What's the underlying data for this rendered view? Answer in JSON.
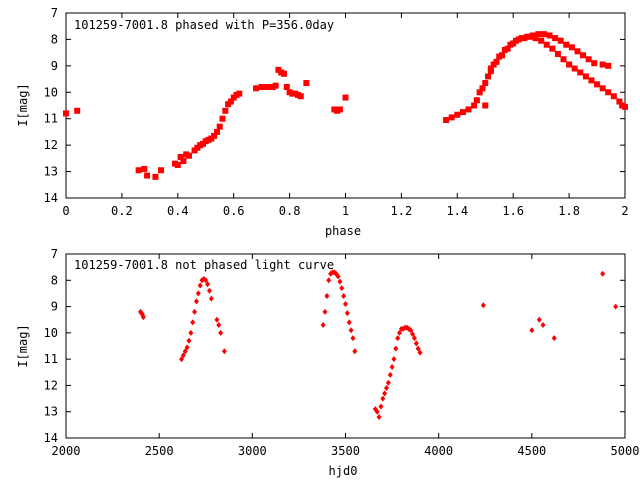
{
  "colors": {
    "marker": "#ff0000",
    "axis": "#000000",
    "background": "#ffffff"
  },
  "chart_data": [
    {
      "type": "scatter",
      "title": "101259-7001.8 phased with P=356.0day",
      "xlabel": "phase",
      "ylabel": "I[mag]",
      "xlim": [
        0,
        2
      ],
      "ylim": [
        14,
        7
      ],
      "y_inverted": true,
      "xticks": [
        "0",
        "0.2",
        "0.4",
        "0.6",
        "0.8",
        "1",
        "1.2",
        "1.4",
        "1.6",
        "1.8",
        "2"
      ],
      "yticks": [
        "7",
        "8",
        "9",
        "10",
        "11",
        "12",
        "13",
        "14"
      ],
      "grid": false,
      "series": [
        {
          "marker": "square",
          "x": [
            0.0,
            0.04,
            0.26,
            0.28,
            0.29,
            0.32,
            0.34,
            0.39,
            0.4,
            0.41,
            0.42,
            0.43,
            0.44,
            0.46,
            0.47,
            0.48,
            0.49,
            0.5,
            0.51,
            0.52,
            0.53,
            0.54,
            0.55,
            0.56,
            0.57,
            0.58,
            0.59,
            0.6,
            0.61,
            0.62,
            0.68,
            0.7,
            0.72,
            0.74,
            0.75,
            0.76,
            0.77,
            0.78,
            0.79,
            0.8,
            0.81,
            0.82,
            0.83,
            0.84,
            0.86,
            0.96,
            0.97,
            0.98,
            1.0,
            1.36,
            1.38,
            1.4,
            1.42,
            1.44,
            1.46,
            1.47,
            1.48,
            1.49,
            1.5,
            1.51,
            1.52,
            1.53,
            1.55,
            1.57,
            1.59,
            1.61,
            1.63,
            1.65,
            1.67,
            1.69,
            1.71,
            1.73,
            1.75,
            1.77,
            1.79,
            1.81,
            1.83,
            1.85,
            1.87,
            1.89,
            1.5,
            1.52,
            1.54,
            1.56,
            1.58,
            1.6,
            1.62,
            1.64,
            1.66,
            1.68,
            1.7,
            1.72,
            1.74,
            1.76,
            1.78,
            1.8,
            1.82,
            1.84,
            1.86,
            1.88,
            1.9,
            1.92,
            1.94,
            1.96,
            1.98,
            1.99,
            2.0,
            1.92,
            1.94
          ],
          "y": [
            10.8,
            10.7,
            12.95,
            12.9,
            13.15,
            13.2,
            12.95,
            12.7,
            12.75,
            12.45,
            12.6,
            12.35,
            12.4,
            12.2,
            12.1,
            12.0,
            11.95,
            11.85,
            11.8,
            11.75,
            11.65,
            11.5,
            11.3,
            11.0,
            10.7,
            10.45,
            10.35,
            10.2,
            10.1,
            10.05,
            9.85,
            9.8,
            9.8,
            9.8,
            9.75,
            9.15,
            9.25,
            9.3,
            9.8,
            10.0,
            10.05,
            10.05,
            10.1,
            10.15,
            9.65,
            10.65,
            10.7,
            10.65,
            10.2,
            11.05,
            10.95,
            10.85,
            10.75,
            10.65,
            10.5,
            10.3,
            10.0,
            9.85,
            9.65,
            9.4,
            9.2,
            8.95,
            8.65,
            8.4,
            8.2,
            8.05,
            7.95,
            7.9,
            7.85,
            7.8,
            7.8,
            7.85,
            7.95,
            8.05,
            8.2,
            8.3,
            8.45,
            8.6,
            8.75,
            8.9,
            10.5,
            9.1,
            8.85,
            8.6,
            8.35,
            8.15,
            8.0,
            7.95,
            7.9,
            7.95,
            8.05,
            8.2,
            8.35,
            8.55,
            8.75,
            8.95,
            9.1,
            9.25,
            9.4,
            9.55,
            9.7,
            9.85,
            10.0,
            10.15,
            10.35,
            10.5,
            10.55,
            8.95,
            9.0
          ]
        }
      ]
    },
    {
      "type": "scatter",
      "title": "101259-7001.8 not phased light curve",
      "xlabel": "hjd0",
      "ylabel": "I[mag]",
      "xlim": [
        2000,
        5000
      ],
      "ylim": [
        14,
        7
      ],
      "y_inverted": true,
      "xticks": [
        "2000",
        "2500",
        "3000",
        "3500",
        "4000",
        "4500",
        "5000"
      ],
      "yticks": [
        "7",
        "8",
        "9",
        "10",
        "11",
        "12",
        "13",
        "14"
      ],
      "grid": false,
      "series": [
        {
          "marker": "diamond",
          "x": [
            2400,
            2405,
            2410,
            2415,
            2620,
            2630,
            2640,
            2650,
            2660,
            2670,
            2680,
            2690,
            2700,
            2710,
            2720,
            2730,
            2740,
            2750,
            2760,
            2770,
            2780,
            2810,
            2820,
            2830,
            2850,
            3380,
            3390,
            3400,
            3410,
            3420,
            3430,
            3440,
            3450,
            3460,
            3470,
            3480,
            3490,
            3500,
            3510,
            3520,
            3530,
            3540,
            3550,
            3660,
            3670,
            3680,
            3690,
            3700,
            3710,
            3720,
            3730,
            3740,
            3750,
            3760,
            3770,
            3780,
            3790,
            3800,
            3810,
            3820,
            3830,
            3840,
            3850,
            3860,
            3870,
            3880,
            3890,
            3900,
            4240,
            4500,
            4540,
            4560,
            4620,
            4880,
            4950
          ],
          "y": [
            9.2,
            9.25,
            9.3,
            9.4,
            11.0,
            10.85,
            10.7,
            10.55,
            10.3,
            10.0,
            9.6,
            9.2,
            8.8,
            8.5,
            8.2,
            8.0,
            7.95,
            8.0,
            8.15,
            8.4,
            8.7,
            9.5,
            9.7,
            10.0,
            10.7,
            9.7,
            9.2,
            8.6,
            8.0,
            7.75,
            7.7,
            7.7,
            7.75,
            7.85,
            8.05,
            8.3,
            8.6,
            8.9,
            9.25,
            9.6,
            9.9,
            10.2,
            10.7,
            12.9,
            13.0,
            13.2,
            12.8,
            12.5,
            12.3,
            12.1,
            11.9,
            11.6,
            11.3,
            11.0,
            10.6,
            10.2,
            10.0,
            9.85,
            9.85,
            9.8,
            9.8,
            9.85,
            9.9,
            10.05,
            10.2,
            10.4,
            10.6,
            10.75,
            8.95,
            9.9,
            9.5,
            9.7,
            10.2,
            7.75,
            9.0
          ]
        }
      ]
    }
  ]
}
